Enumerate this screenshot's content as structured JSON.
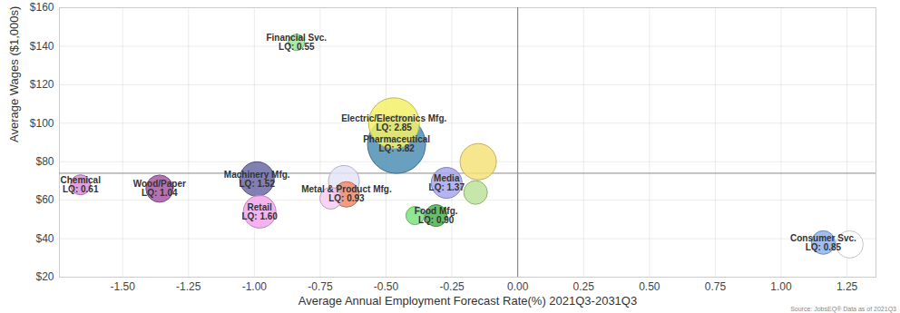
{
  "chart_data": {
    "type": "bubble",
    "x_label": "Average Annual Employment Forecast Rate(%) 2021Q3-2031Q3",
    "y_label": "Average Wages ($1,000s)",
    "source": "Source: JobsEQ® Data as of 2021Q3",
    "x": [
      -0.84,
      -0.47,
      -0.46,
      -0.15,
      -1.66,
      -1.36,
      -0.99,
      -0.98,
      -0.66,
      -0.71,
      -0.65,
      -0.27,
      -0.16,
      -0.39,
      -0.31,
      1.16,
      1.26
    ],
    "values": [
      142,
      100,
      89,
      80,
      68,
      66,
      71,
      54,
      70,
      61,
      63,
      69,
      64,
      52,
      52,
      38,
      37
    ],
    "sizes": [
      9,
      28,
      32,
      20,
      11,
      15,
      19,
      18,
      17,
      12,
      14,
      17,
      13,
      10,
      12,
      13,
      15
    ],
    "labels": [
      "Financial Svc.\nLQ: 0.55",
      "Electric/Electronics Mfg.\nLQ: 2.85",
      "Pharmaceutical\nLQ: 3.82",
      null,
      "Chemical\nLQ: 0.61",
      "Wood/Paper\nLQ: 1.04",
      "Machinery Mfg.\nLQ: 1.52",
      "Retail\nLQ: 1.60",
      null,
      null,
      "Metal & Product Mfg.\nLQ: 0.93",
      "Media\nLQ: 1.37",
      null,
      null,
      "Food Mfg.\nLQ: 0.90",
      "Consumer Svc.\nLQ: 0.85",
      null
    ],
    "colors": [
      "#9be59b",
      "#f5f06a",
      "#4f8fb5",
      "#f5e27a",
      "#dc8fd8",
      "#a65aa6",
      "#6c6aa4",
      "#f2a6ec",
      "#e4e4f8",
      "#f6cdf2",
      "#f28a6a",
      "#a9a6ee",
      "#bde29a",
      "#7ee27e",
      "#4bb34b",
      "#8fb3ee",
      "#ffffff"
    ],
    "xlim": [
      -1.74,
      1.36
    ],
    "ylim": [
      20,
      160
    ],
    "xticks": [
      {
        "value": -1.5,
        "label": "-1.50"
      },
      -1.25,
      {
        "value": -1,
        "label": "-1.00"
      },
      -0.75,
      {
        "value": -0.5,
        "label": "-0.50"
      },
      -0.25,
      {
        "value": 0,
        "label": "0.00"
      },
      0.25,
      {
        "value": 0.5,
        "label": "0.50"
      },
      0.75,
      {
        "value": 1,
        "label": "1.00"
      },
      1.25
    ],
    "yticks": [
      {
        "value": 20,
        "label": "$20"
      },
      {
        "value": 40,
        "label": "$40"
      },
      {
        "value": 60,
        "label": "$60"
      },
      {
        "value": 80,
        "label": "$80"
      },
      {
        "value": 100,
        "label": "$100"
      },
      {
        "value": 120,
        "label": "$120"
      },
      {
        "value": 140,
        "label": "$140"
      },
      {
        "value": 160,
        "label": "$160"
      }
    ],
    "grid": true,
    "x_reference": 0,
    "y_reference": 74
  }
}
